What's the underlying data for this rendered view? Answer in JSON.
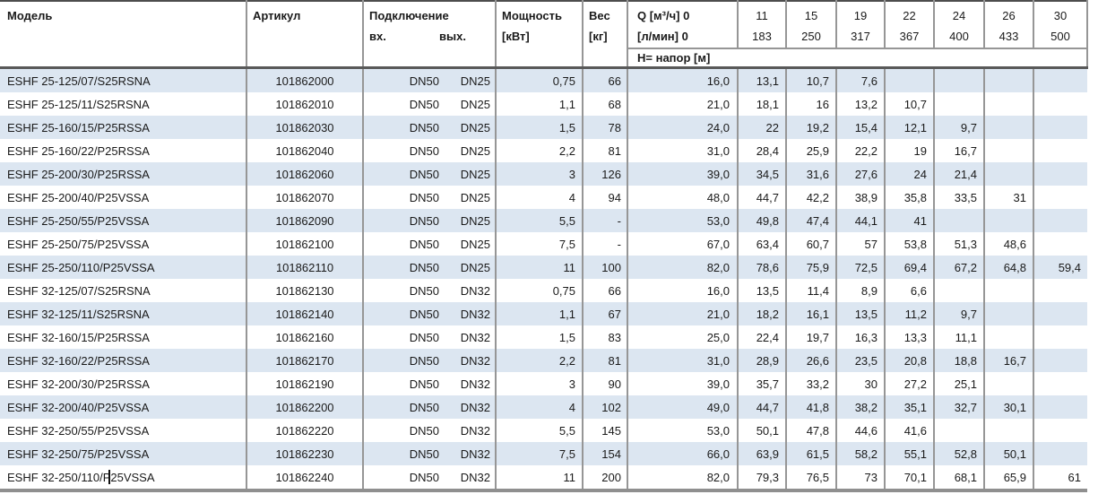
{
  "table": {
    "header": {
      "model": "Модель",
      "article": "Артикул",
      "connection": "Подключение",
      "connection_in": "вх.",
      "connection_out": "вых.",
      "power_line1": "Мощность",
      "power_line2": "[кВт]",
      "weight_line1": "Вес",
      "weight_line2": "[кг]",
      "q_line1": "Q [м³/ч] 0",
      "q_line2": "[л/мин] 0",
      "head_label": "H= напор [м]",
      "flow_columns": [
        {
          "m3h": "11",
          "lmin": "183"
        },
        {
          "m3h": "15",
          "lmin": "250"
        },
        {
          "m3h": "19",
          "lmin": "317"
        },
        {
          "m3h": "22",
          "lmin": "367"
        },
        {
          "m3h": "24",
          "lmin": "400"
        },
        {
          "m3h": "26",
          "lmin": "433"
        },
        {
          "m3h": "30",
          "lmin": "500"
        }
      ]
    },
    "rows": [
      {
        "model": "ESHF 25-125/07/S25RSNA",
        "article": "101862000",
        "conn_in": "DN50",
        "conn_out": "DN25",
        "power": "0,75",
        "weight": "66",
        "heads": [
          "16,0",
          "13,1",
          "10,7",
          "7,6",
          "",
          "",
          "",
          ""
        ]
      },
      {
        "model": "ESHF 25-125/11/S25RSNA",
        "article": "101862010",
        "conn_in": "DN50",
        "conn_out": "DN25",
        "power": "1,1",
        "weight": "68",
        "heads": [
          "21,0",
          "18,1",
          "16",
          "13,2",
          "10,7",
          "",
          "",
          ""
        ]
      },
      {
        "model": "ESHF 25-160/15/P25RSSA",
        "article": "101862030",
        "conn_in": "DN50",
        "conn_out": "DN25",
        "power": "1,5",
        "weight": "78",
        "heads": [
          "24,0",
          "22",
          "19,2",
          "15,4",
          "12,1",
          "9,7",
          "",
          ""
        ]
      },
      {
        "model": "ESHF 25-160/22/P25RSSA",
        "article": "101862040",
        "conn_in": "DN50",
        "conn_out": "DN25",
        "power": "2,2",
        "weight": "81",
        "heads": [
          "31,0",
          "28,4",
          "25,9",
          "22,2",
          "19",
          "16,7",
          "",
          ""
        ]
      },
      {
        "model": "ESHF 25-200/30/P25RSSA",
        "article": "101862060",
        "conn_in": "DN50",
        "conn_out": "DN25",
        "power": "3",
        "weight": "126",
        "heads": [
          "39,0",
          "34,5",
          "31,6",
          "27,6",
          "24",
          "21,4",
          "",
          ""
        ]
      },
      {
        "model": "ESHF 25-200/40/P25VSSA",
        "article": "101862070",
        "conn_in": "DN50",
        "conn_out": "DN25",
        "power": "4",
        "weight": "94",
        "heads": [
          "48,0",
          "44,7",
          "42,2",
          "38,9",
          "35,8",
          "33,5",
          "31",
          ""
        ]
      },
      {
        "model": "ESHF 25-250/55/P25VSSA",
        "article": "101862090",
        "conn_in": "DN50",
        "conn_out": "DN25",
        "power": "5,5",
        "weight": "-",
        "heads": [
          "53,0",
          "49,8",
          "47,4",
          "44,1",
          "41",
          "",
          "",
          ""
        ]
      },
      {
        "model": "ESHF 25-250/75/P25VSSA",
        "article": "101862100",
        "conn_in": "DN50",
        "conn_out": "DN25",
        "power": "7,5",
        "weight": "-",
        "heads": [
          "67,0",
          "63,4",
          "60,7",
          "57",
          "53,8",
          "51,3",
          "48,6",
          ""
        ]
      },
      {
        "model": "ESHF 25-250/110/P25VSSA",
        "article": "101862110",
        "conn_in": "DN50",
        "conn_out": "DN25",
        "power": "11",
        "weight": "100",
        "heads": [
          "82,0",
          "78,6",
          "75,9",
          "72,5",
          "69,4",
          "67,2",
          "64,8",
          "59,4"
        ]
      },
      {
        "model": "ESHF 32-125/07/S25RSNA",
        "article": "101862130",
        "conn_in": "DN50",
        "conn_out": "DN32",
        "power": "0,75",
        "weight": "66",
        "heads": [
          "16,0",
          "13,5",
          "11,4",
          "8,9",
          "6,6",
          "",
          "",
          ""
        ]
      },
      {
        "model": "ESHF 32-125/11/S25RSNA",
        "article": "101862140",
        "conn_in": "DN50",
        "conn_out": "DN32",
        "power": "1,1",
        "weight": "67",
        "heads": [
          "21,0",
          "18,2",
          "16,1",
          "13,5",
          "11,2",
          "9,7",
          "",
          ""
        ]
      },
      {
        "model": "ESHF 32-160/15/P25RSSA",
        "article": "101862160",
        "conn_in": "DN50",
        "conn_out": "DN32",
        "power": "1,5",
        "weight": "83",
        "heads": [
          "25,0",
          "22,4",
          "19,7",
          "16,3",
          "13,3",
          "11,1",
          "",
          ""
        ]
      },
      {
        "model": "ESHF 32-160/22/P25RSSA",
        "article": "101862170",
        "conn_in": "DN50",
        "conn_out": "DN32",
        "power": "2,2",
        "weight": "81",
        "heads": [
          "31,0",
          "28,9",
          "26,6",
          "23,5",
          "20,8",
          "18,8",
          "16,7",
          ""
        ]
      },
      {
        "model": "ESHF 32-200/30/P25RSSA",
        "article": "101862190",
        "conn_in": "DN50",
        "conn_out": "DN32",
        "power": "3",
        "weight": "90",
        "heads": [
          "39,0",
          "35,7",
          "33,2",
          "30",
          "27,2",
          "25,1",
          "",
          ""
        ]
      },
      {
        "model": "ESHF 32-200/40/P25VSSA",
        "article": "101862200",
        "conn_in": "DN50",
        "conn_out": "DN32",
        "power": "4",
        "weight": "102",
        "heads": [
          "49,0",
          "44,7",
          "41,8",
          "38,2",
          "35,1",
          "32,7",
          "30,1",
          ""
        ]
      },
      {
        "model": "ESHF 32-250/55/P25VSSA",
        "article": "101862220",
        "conn_in": "DN50",
        "conn_out": "DN32",
        "power": "5,5",
        "weight": "145",
        "heads": [
          "53,0",
          "50,1",
          "47,8",
          "44,6",
          "41,6",
          "",
          "",
          ""
        ]
      },
      {
        "model": "ESHF 32-250/75/P25VSSA",
        "article": "101862230",
        "conn_in": "DN50",
        "conn_out": "DN32",
        "power": "7,5",
        "weight": "154",
        "heads": [
          "66,0",
          "63,9",
          "61,5",
          "58,2",
          "55,1",
          "52,8",
          "50,1",
          ""
        ]
      },
      {
        "model": "ESHF 32-250/110/P25VSSA",
        "article": "101862240",
        "conn_in": "DN50",
        "conn_out": "DN32",
        "power": "11",
        "weight": "200",
        "heads": [
          "82,0",
          "79,3",
          "76,5",
          "73",
          "70,1",
          "68,1",
          "65,9",
          "61"
        ],
        "cursor": true
      }
    ],
    "colors": {
      "stripe": "#dce6f1",
      "column_rule": "#969696",
      "header_rule": "#595959",
      "top_rule": "#4d4d4d",
      "bottom_rule": "#8f8f8f",
      "text": "#1a1a1a"
    }
  }
}
